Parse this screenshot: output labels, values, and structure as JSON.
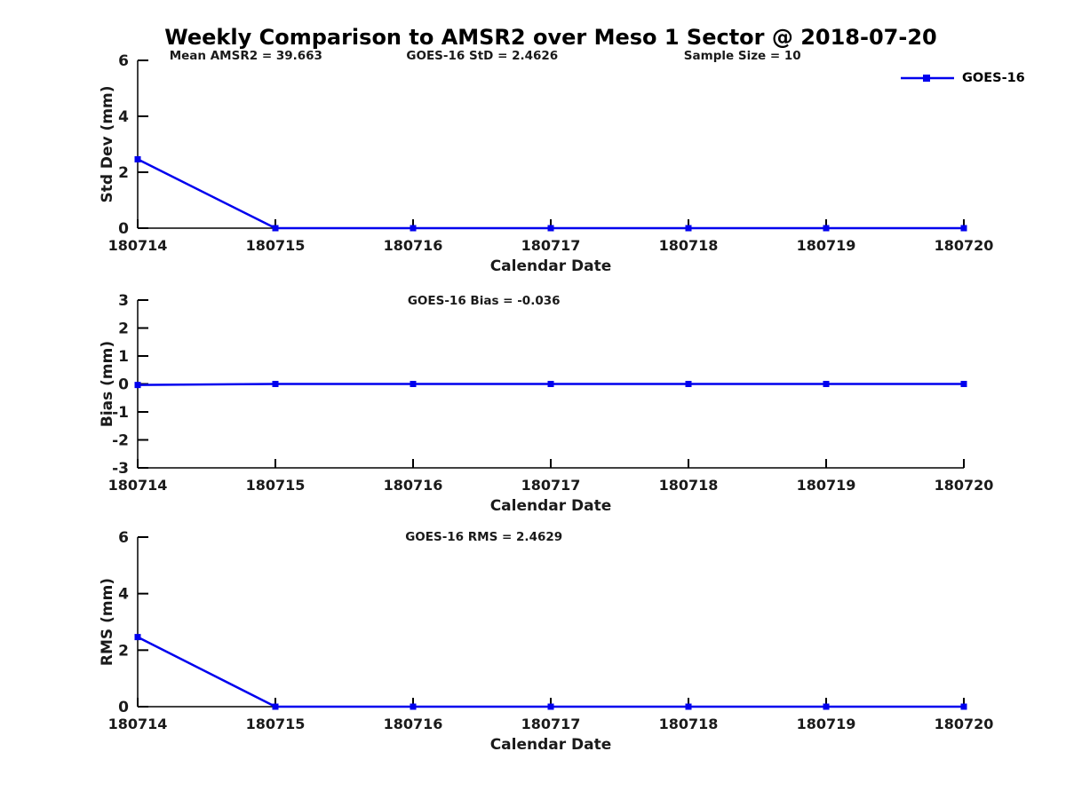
{
  "title": "Weekly Comparison to AMSR2 over Meso 1 Sector @ 2018-07-20",
  "legend": {
    "label": "GOES-16"
  },
  "colors": {
    "line": "#0000ee",
    "axis": "#000000",
    "text": "#1a1a1a",
    "background": "#ffffff"
  },
  "chart_data": [
    {
      "type": "line",
      "name": "std-dev",
      "annotations": [
        "Mean AMSR2 = 39.663",
        "GOES-16 StD = 2.4626",
        "Sample Size = 10"
      ],
      "x": [
        "180714",
        "180715",
        "180716",
        "180717",
        "180718",
        "180719",
        "180720"
      ],
      "series": [
        {
          "name": "GOES-16",
          "values": [
            2.4626,
            0,
            0,
            0,
            0,
            0,
            0
          ]
        }
      ],
      "xlabel": "Calendar Date",
      "ylabel": "Std Dev (mm)",
      "ylim": [
        0,
        6
      ],
      "yticks": [
        0,
        2,
        4,
        6
      ],
      "grid": false,
      "legend_position": "top-right"
    },
    {
      "type": "line",
      "name": "bias",
      "annotations": [
        "GOES-16 Bias  = -0.036"
      ],
      "x": [
        "180714",
        "180715",
        "180716",
        "180717",
        "180718",
        "180719",
        "180720"
      ],
      "series": [
        {
          "name": "GOES-16",
          "values": [
            -0.036,
            0,
            0,
            0,
            0,
            0,
            0
          ]
        }
      ],
      "xlabel": "Calendar Date",
      "ylabel": "Bias (mm)",
      "ylim": [
        -3,
        3
      ],
      "yticks": [
        -3,
        -2,
        -1,
        0,
        1,
        2,
        3
      ],
      "grid": false
    },
    {
      "type": "line",
      "name": "rms",
      "annotations": [
        "GOES-16 RMS = 2.4629"
      ],
      "x": [
        "180714",
        "180715",
        "180716",
        "180717",
        "180718",
        "180719",
        "180720"
      ],
      "series": [
        {
          "name": "GOES-16",
          "values": [
            2.4629,
            0,
            0,
            0,
            0,
            0,
            0
          ]
        }
      ],
      "xlabel": "Calendar Date",
      "ylabel": "RMS (mm)",
      "ylim": [
        0,
        6
      ],
      "yticks": [
        0,
        2,
        4,
        6
      ],
      "grid": false
    }
  ]
}
